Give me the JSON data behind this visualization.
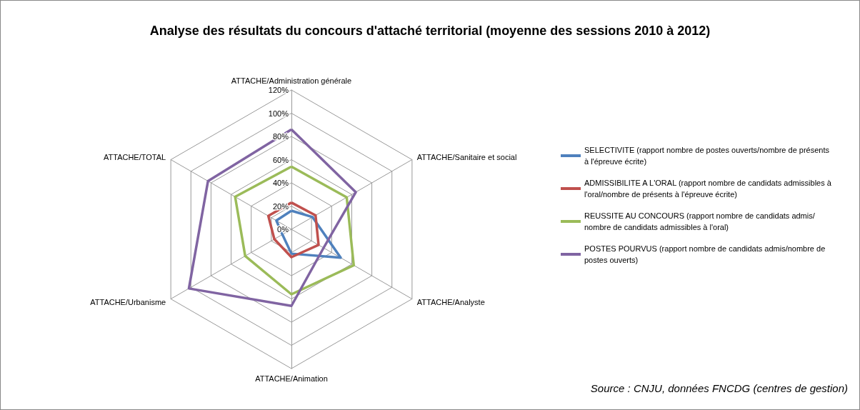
{
  "chart_data": {
    "type": "radar",
    "title": "Analyse des résultats du concours d'attaché territorial (moyenne des sessions 2010 à 2012)",
    "categories": [
      "ATTACHE/Administration générale",
      "ATTACHE/Sanitaire et social",
      "ATTACHE/Analyste",
      "ATTACHE/Animation",
      "ATTACHE/Urbanisme",
      "ATTACHE/TOTAL"
    ],
    "series": [
      {
        "name": "SELECTIVITE (rapport nombre de postes ouverts/nombre de présents à l'épreuve écrite)",
        "color": "#4f81bd",
        "values": [
          16,
          21,
          49,
          21,
          9,
          15
        ]
      },
      {
        "name": "ADMISSIBILITE A L'ORAL (rapport nombre de candidats admissibles à l'oral/nombre de présents à l'épreuve écrite)",
        "color": "#c0504d",
        "values": [
          23,
          24,
          27,
          24,
          17,
          23
        ]
      },
      {
        "name": "REUSSITE AU CONCOURS (rapport nombre de candidats admis/ nombre de candidats admissibles à l'oral)",
        "color": "#9bbb59",
        "values": [
          54,
          55,
          62,
          56,
          46,
          56
        ]
      },
      {
        "name": "POSTES POURVUS (rapport nombre de candidats admis/nombre de postes ouverts)",
        "color": "#8064a2",
        "values": [
          86,
          64,
          32,
          66,
          102,
          83
        ]
      }
    ],
    "ylim": [
      0,
      120
    ],
    "yticks": [
      {
        "value": 0,
        "label": "0%"
      },
      {
        "value": 20,
        "label": "20%"
      },
      {
        "value": 40,
        "label": "40%"
      },
      {
        "value": 60,
        "label": "60%"
      },
      {
        "value": 80,
        "label": "80%"
      },
      {
        "value": 100,
        "label": "100%"
      },
      {
        "value": 120,
        "label": "120%"
      }
    ],
    "legend": "right",
    "marker": "none",
    "line_style": "solid",
    "annotations": [
      "Source : CNJU, données FNCDG (centres de gestion)"
    ]
  }
}
